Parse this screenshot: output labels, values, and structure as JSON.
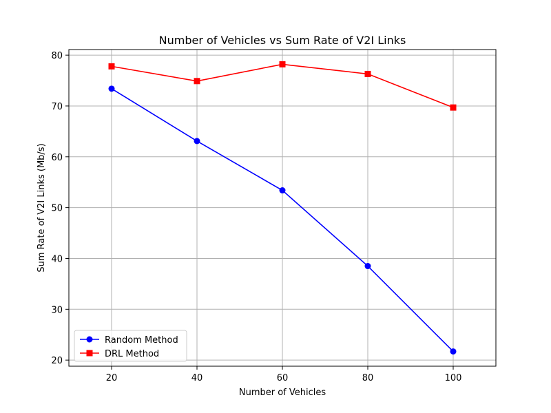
{
  "chart_data": {
    "type": "line",
    "title": "Number of Vehicles vs Sum Rate of V2I Links",
    "xlabel": "Number of Vehicles",
    "ylabel": "Sum Rate of V2I Links (Mb/s)",
    "x": [
      20,
      40,
      60,
      80,
      100
    ],
    "xlim": [
      10,
      110
    ],
    "ylim": [
      18.8,
      81.1
    ],
    "xticks": [
      20,
      40,
      60,
      80,
      100
    ],
    "yticks": [
      20,
      30,
      40,
      50,
      60,
      70,
      80
    ],
    "grid": true,
    "legend_position": "lower-left",
    "series": [
      {
        "name": "Random Method",
        "color": "#0000ff",
        "marker": "circle",
        "values": [
          73.4,
          63.1,
          53.4,
          38.5,
          21.7
        ]
      },
      {
        "name": "DRL Method",
        "color": "#ff0000",
        "marker": "square",
        "values": [
          77.8,
          74.9,
          78.2,
          76.3,
          69.7
        ]
      }
    ]
  }
}
